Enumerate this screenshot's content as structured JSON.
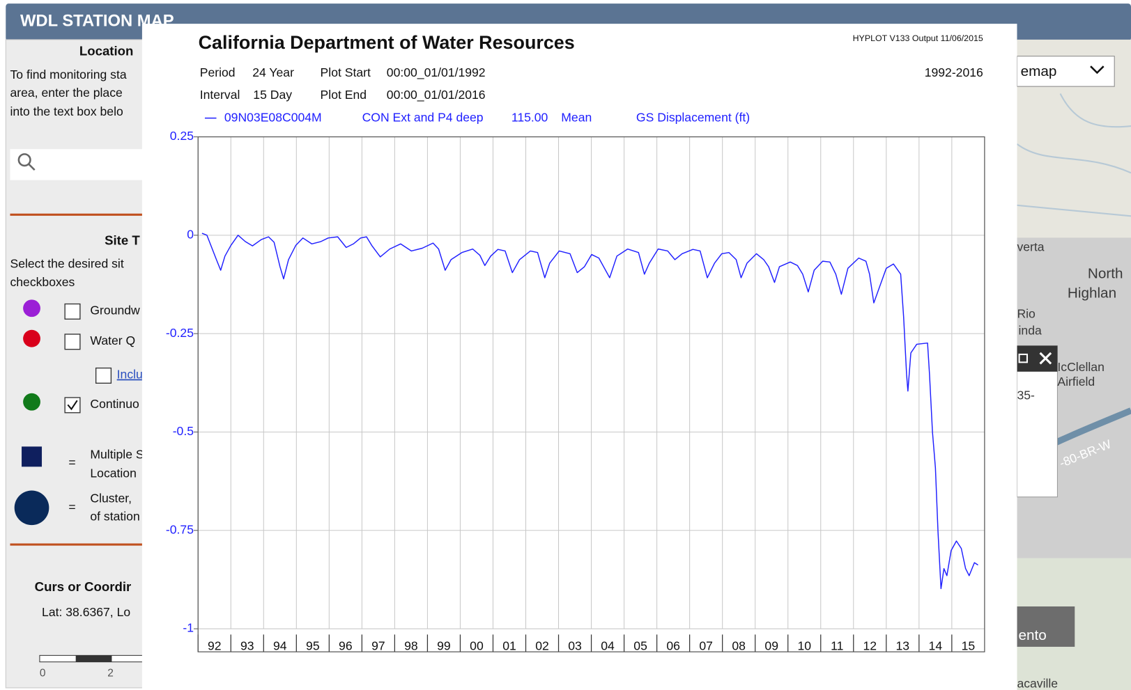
{
  "header": {
    "title": "WDL STATION MAP"
  },
  "sidebar": {
    "location_heading": "Location",
    "location_help": [
      "To find monitoring sta",
      "area, enter the place",
      "into the text box belo"
    ],
    "site_heading": "Site T",
    "site_help": [
      "Select the desired sit",
      "checkboxes"
    ],
    "site_types": [
      {
        "label": "Groundw",
        "checked": false,
        "color": "#9b1fd6"
      },
      {
        "label": "Water Q",
        "checked": false,
        "color": "#d9001b"
      },
      {
        "label": "Inclu",
        "checked": false
      },
      {
        "label": "Continuo",
        "checked": true,
        "color": "#117a1a"
      }
    ],
    "legend": [
      {
        "symbol": "=",
        "text": [
          "Multiple S",
          "Location"
        ]
      },
      {
        "symbol": "=",
        "text": [
          "Cluster,",
          "of station"
        ]
      }
    ],
    "cursor_heading": "Curs or Coordir",
    "cursor_value": "Lat: 38.6367, Lo",
    "scale_labels": [
      "0",
      "2"
    ]
  },
  "map": {
    "basemap_select": "emap",
    "labels": [
      "verta",
      "North",
      "Highlan",
      "Rio",
      "inda",
      "IcClellan",
      "Airfield",
      "35-",
      "-80-BR-W",
      "ento",
      "acaville"
    ]
  },
  "chart_data": {
    "type": "line",
    "title": "California Department of Water Resources",
    "program": "HYPLOT V133  Output 11/06/2015",
    "info": [
      [
        "Period",
        "24 Year",
        "Plot Start",
        "00:00_01/01/1992"
      ],
      [
        "Interval",
        "15 Day",
        "Plot End",
        "00:00_01/01/2016"
      ]
    ],
    "range_label": "1992-2016",
    "legend_fields": [
      "CON Ext and P4 deep",
      "115.00",
      "Mean",
      "GS Displacement (ft)"
    ],
    "xlim": [
      1992,
      2016
    ],
    "xticks": [
      {
        "value": 1992,
        "label": "92"
      },
      {
        "value": 1993,
        "label": "93"
      },
      {
        "value": 1994,
        "label": "94"
      },
      {
        "value": 1995,
        "label": "95"
      },
      {
        "value": 1996,
        "label": "96"
      },
      {
        "value": 1997,
        "label": "97"
      },
      {
        "value": 1998,
        "label": "98"
      },
      {
        "value": 1999,
        "label": "99"
      },
      {
        "value": 2000,
        "label": "00"
      },
      {
        "value": 2001,
        "label": "01"
      },
      {
        "value": 2002,
        "label": "02"
      },
      {
        "value": 2003,
        "label": "03"
      },
      {
        "value": 2004,
        "label": "04"
      },
      {
        "value": 2005,
        "label": "05"
      },
      {
        "value": 2006,
        "label": "06"
      },
      {
        "value": 2007,
        "label": "07"
      },
      {
        "value": 2008,
        "label": "08"
      },
      {
        "value": 2009,
        "label": "09"
      },
      {
        "value": 2010,
        "label": "10"
      },
      {
        "value": 2011,
        "label": "11"
      },
      {
        "value": 2012,
        "label": "12"
      },
      {
        "value": 2013,
        "label": "13"
      },
      {
        "value": 2014,
        "label": "14"
      },
      {
        "value": 2015,
        "label": "15"
      }
    ],
    "ylim": [
      -1,
      0.25
    ],
    "yticks": [
      0.25,
      0,
      -0.25,
      -0.5,
      -0.75,
      -1
    ],
    "grid": true,
    "x": [
      1992.12,
      1992.27,
      1992.56,
      1992.69,
      1992.82,
      1993.0,
      1993.22,
      1993.44,
      1993.66,
      1993.93,
      1994.15,
      1994.32,
      1994.5,
      1994.61,
      1994.76,
      1994.98,
      1995.2,
      1995.47,
      1995.75,
      1995.97,
      1996.26,
      1996.52,
      1996.74,
      1996.96,
      1997.14,
      1997.3,
      1997.56,
      1997.85,
      1998.18,
      1998.51,
      1998.84,
      1999.17,
      1999.34,
      1999.54,
      1999.72,
      2000.05,
      2000.38,
      2000.6,
      2000.75,
      2000.93,
      2001.15,
      2001.37,
      2001.59,
      2001.81,
      2002.14,
      2002.36,
      2002.58,
      2002.73,
      2003.02,
      2003.35,
      2003.57,
      2003.79,
      2004.01,
      2004.23,
      2004.56,
      2004.78,
      2005.11,
      2005.44,
      2005.62,
      2005.77,
      2006.04,
      2006.33,
      2006.55,
      2006.77,
      2007.1,
      2007.32,
      2007.54,
      2007.76,
      2007.98,
      2008.2,
      2008.42,
      2008.57,
      2008.75,
      2009.04,
      2009.26,
      2009.41,
      2009.59,
      2009.74,
      2010.07,
      2010.29,
      2010.45,
      2010.62,
      2010.8,
      2011.06,
      2011.28,
      2011.46,
      2011.63,
      2011.83,
      2012.16,
      2012.38,
      2012.49,
      2012.62,
      2012.78,
      2013.0,
      2013.22,
      2013.44,
      2013.53,
      2013.62,
      2013.66,
      2013.75,
      2013.93,
      2014.26,
      2014.32,
      2014.41,
      2014.5,
      2014.58,
      2014.67,
      2014.76,
      2014.85,
      2014.98,
      2015.14,
      2015.29,
      2015.42,
      2015.53,
      2015.69,
      2015.8
    ],
    "series": [
      {
        "name": "09N03E08C004M",
        "color": "#1f1fff",
        "values": [
          0.005,
          0,
          -0.062,
          -0.089,
          -0.053,
          -0.026,
          0,
          -0.016,
          -0.027,
          -0.011,
          -0.004,
          -0.018,
          -0.08,
          -0.111,
          -0.062,
          -0.026,
          -0.007,
          -0.022,
          -0.016,
          -0.007,
          -0.004,
          -0.031,
          -0.022,
          -0.007,
          -0.004,
          -0.026,
          -0.055,
          -0.035,
          -0.022,
          -0.04,
          -0.033,
          -0.02,
          -0.035,
          -0.089,
          -0.062,
          -0.044,
          -0.035,
          -0.051,
          -0.077,
          -0.053,
          -0.036,
          -0.04,
          -0.095,
          -0.062,
          -0.04,
          -0.044,
          -0.108,
          -0.071,
          -0.04,
          -0.047,
          -0.095,
          -0.08,
          -0.049,
          -0.058,
          -0.108,
          -0.053,
          -0.035,
          -0.044,
          -0.099,
          -0.071,
          -0.035,
          -0.04,
          -0.062,
          -0.047,
          -0.036,
          -0.04,
          -0.108,
          -0.071,
          -0.047,
          -0.044,
          -0.062,
          -0.108,
          -0.071,
          -0.047,
          -0.062,
          -0.08,
          -0.12,
          -0.08,
          -0.068,
          -0.077,
          -0.099,
          -0.144,
          -0.089,
          -0.066,
          -0.068,
          -0.099,
          -0.15,
          -0.084,
          -0.058,
          -0.066,
          -0.099,
          -0.172,
          -0.135,
          -0.084,
          -0.073,
          -0.099,
          -0.208,
          -0.354,
          -0.396,
          -0.299,
          -0.277,
          -0.274,
          -0.354,
          -0.5,
          -0.591,
          -0.755,
          -0.898,
          -0.847,
          -0.865,
          -0.801,
          -0.777,
          -0.796,
          -0.847,
          -0.865,
          -0.832,
          -0.838
        ]
      }
    ]
  }
}
